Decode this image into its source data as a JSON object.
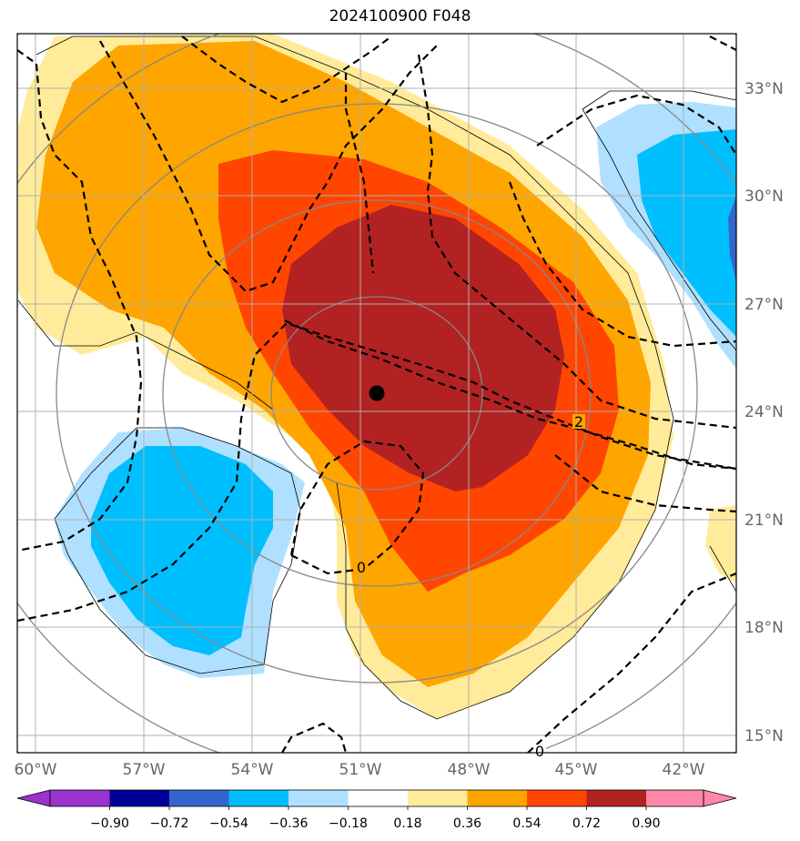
{
  "title": "2024100900 F048",
  "lon_labels": [
    "60°W",
    "57°W",
    "54°W",
    "51°W",
    "48°W",
    "45°W",
    "42°W"
  ],
  "lat_labels": [
    "33°N",
    "30°N",
    "27°N",
    "24°N",
    "21°N",
    "18°N",
    "15°N"
  ],
  "contour_labels": [
    "0",
    "0",
    "2"
  ],
  "colorbar": {
    "tick_labels": [
      "−0.90",
      "−0.72",
      "−0.54",
      "−0.36",
      "−0.18",
      "0.18",
      "0.36",
      "0.54",
      "0.72",
      "0.90"
    ],
    "colors": [
      "#9933cc",
      "#000099",
      "#3366cc",
      "#00bfff",
      "#b0e0ff",
      "#ffffff",
      "#ffeb99",
      "#ffa500",
      "#ff4500",
      "#b22222",
      "#ff88aa"
    ]
  },
  "colors": {
    "light_yellow": "#ffeb99",
    "orange": "#ffa500",
    "red_orange": "#ff4500",
    "dark_red": "#b22222",
    "light_blue": "#b0e0ff",
    "blue": "#00bfff",
    "medium_blue": "#3366cc",
    "grid": "#b0b0b0",
    "axis_text": "#666666"
  },
  "center_marker": "filled-black-dot"
}
